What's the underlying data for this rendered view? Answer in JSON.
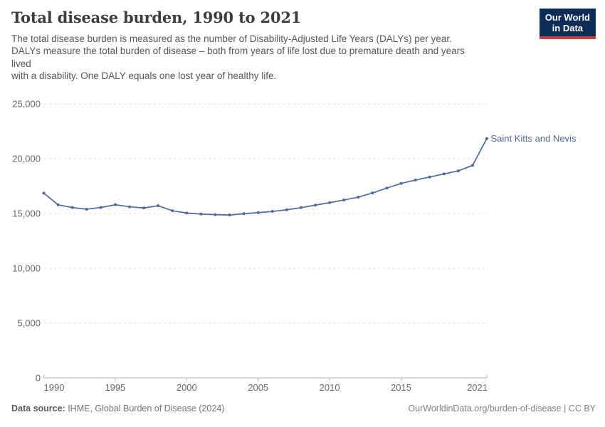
{
  "header": {
    "title": "Total disease burden, 1990 to 2021",
    "subtitle_lines": [
      "The total disease burden is measured as the number of Disability-Adjusted Life Years (DALYs) per year.",
      "DALYs measure the total burden of disease – both from years of life lost due to premature death and years",
      "lived",
      "with a disability. One DALY equals one lost year of healthy life."
    ]
  },
  "logo": {
    "line1": "Our World",
    "line2": "in Data",
    "bg_color": "#0d2d56",
    "accent_color": "#cb3d3d"
  },
  "chart_data": {
    "type": "line",
    "title": "Total disease burden, 1990 to 2021",
    "xlabel": "",
    "ylabel": "",
    "xlim": [
      1990,
      2021
    ],
    "ylim": [
      0,
      25000
    ],
    "grid": "horizontal-dashed",
    "legend_position": "end-of-line-label",
    "x": [
      1990,
      1991,
      1992,
      1993,
      1994,
      1995,
      1996,
      1997,
      1998,
      1999,
      2000,
      2001,
      2002,
      2003,
      2004,
      2005,
      2006,
      2007,
      2008,
      2009,
      2010,
      2011,
      2012,
      2013,
      2014,
      2015,
      2016,
      2017,
      2018,
      2019,
      2020,
      2021
    ],
    "series": [
      {
        "name": "Saint Kitts and Nevis",
        "color": "#4c6a9c",
        "values": [
          16870,
          15800,
          15550,
          15400,
          15560,
          15810,
          15620,
          15510,
          15720,
          15260,
          15050,
          14960,
          14900,
          14870,
          14990,
          15090,
          15200,
          15350,
          15540,
          15770,
          16000,
          16240,
          16500,
          16880,
          17330,
          17750,
          18060,
          18340,
          18620,
          18900,
          19400,
          21850
        ]
      }
    ],
    "x_ticks": [
      {
        "value": 1990,
        "label": "1990"
      },
      {
        "value": 1995,
        "label": "1995"
      },
      {
        "value": 2000,
        "label": "2000"
      },
      {
        "value": 2005,
        "label": "2005"
      },
      {
        "value": 2010,
        "label": "2010"
      },
      {
        "value": 2015,
        "label": "2015"
      },
      {
        "value": 2021,
        "label": "2021"
      }
    ],
    "y_ticks": [
      {
        "value": 0,
        "label": "0"
      },
      {
        "value": 5000,
        "label": "5,000"
      },
      {
        "value": 10000,
        "label": "10,000"
      },
      {
        "value": 15000,
        "label": "15,000"
      },
      {
        "value": 20000,
        "label": "20,000"
      },
      {
        "value": 25000,
        "label": "25,000"
      }
    ]
  },
  "footer": {
    "source_label": "Data source:",
    "source_text": " IHME, Global Burden of Disease (2024)",
    "link_text": "OurWorldinData.org/burden-of-disease | CC BY"
  }
}
